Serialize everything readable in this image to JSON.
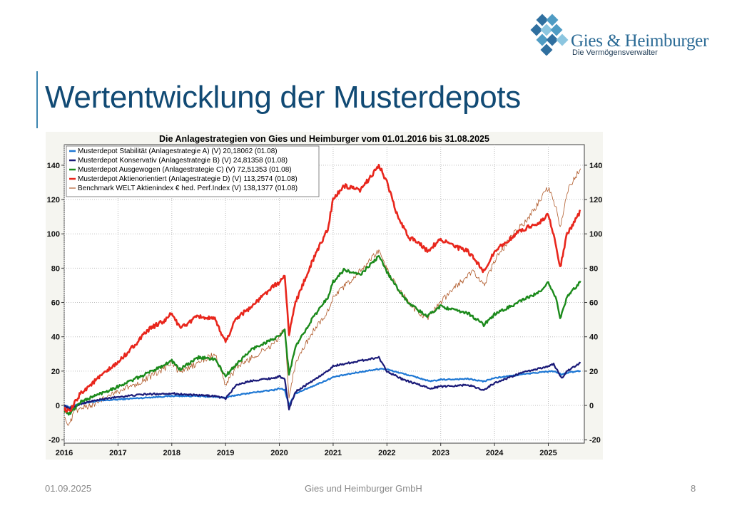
{
  "slide": {
    "title": "Wertentwicklung der Musterdepots",
    "footer_date": "01.09.2025",
    "footer_company": "Gies und Heimburger GmbH",
    "page_number": "8"
  },
  "logo": {
    "name": "Gies & Heimburger",
    "tagline": "Die Vermögensverwalter",
    "colors": [
      "#2f6f9f",
      "#4f9cc4",
      "#8cc6e0"
    ]
  },
  "chart_data": {
    "type": "line",
    "title": "Die Anlagestrategien von Gies und Heimburger vom 01.01.2016 bis 31.08.2025",
    "x_ticks": [
      "2016",
      "2017",
      "2018",
      "2019",
      "2020",
      "2021",
      "2022",
      "2023",
      "2024",
      "2025"
    ],
    "xlim": [
      2016.0,
      2025.67
    ],
    "ylim": [
      -22,
      152
    ],
    "y_ticks": [
      -20,
      0,
      20,
      40,
      60,
      80,
      100,
      120,
      140
    ],
    "grid": true,
    "legend_position": "top-left",
    "series": [
      {
        "name": "Musterdepot Stabilität (Anlagestrategie A) (V) 20,18062 (01.08)",
        "color": "#1f78d4",
        "points": [
          [
            2016.0,
            0
          ],
          [
            2016.1,
            -1
          ],
          [
            2016.3,
            1
          ],
          [
            2016.6,
            2.5
          ],
          [
            2017.0,
            3.5
          ],
          [
            2017.5,
            4.5
          ],
          [
            2018.0,
            5.5
          ],
          [
            2018.4,
            5.5
          ],
          [
            2018.8,
            5
          ],
          [
            2019.0,
            4.5
          ],
          [
            2019.2,
            6
          ],
          [
            2019.5,
            7.5
          ],
          [
            2019.9,
            9
          ],
          [
            2020.0,
            10
          ],
          [
            2020.1,
            9
          ],
          [
            2020.18,
            0
          ],
          [
            2020.3,
            7
          ],
          [
            2020.6,
            11
          ],
          [
            2020.9,
            15
          ],
          [
            2021.0,
            16.5
          ],
          [
            2021.5,
            19.5
          ],
          [
            2021.9,
            21.5
          ],
          [
            2022.0,
            21
          ],
          [
            2022.3,
            18.5
          ],
          [
            2022.6,
            16
          ],
          [
            2022.8,
            14
          ],
          [
            2023.0,
            15
          ],
          [
            2023.5,
            15.5
          ],
          [
            2023.8,
            14
          ],
          [
            2024.0,
            16
          ],
          [
            2024.5,
            18
          ],
          [
            2024.9,
            19.5
          ],
          [
            2025.1,
            20
          ],
          [
            2025.25,
            18
          ],
          [
            2025.35,
            19
          ],
          [
            2025.6,
            20.2
          ]
        ]
      },
      {
        "name": "Musterdepot Konservativ (Anlagestrategie B) (V) 24,81358 (01.08)",
        "color": "#1a1a78",
        "points": [
          [
            2016.0,
            0
          ],
          [
            2016.1,
            -2
          ],
          [
            2016.3,
            1
          ],
          [
            2016.6,
            3
          ],
          [
            2017.0,
            5
          ],
          [
            2017.5,
            6.5
          ],
          [
            2018.0,
            7
          ],
          [
            2018.4,
            6
          ],
          [
            2018.8,
            5.5
          ],
          [
            2019.0,
            4
          ],
          [
            2019.2,
            12
          ],
          [
            2019.5,
            14.5
          ],
          [
            2019.9,
            16
          ],
          [
            2020.0,
            17
          ],
          [
            2020.1,
            15
          ],
          [
            2020.18,
            -2
          ],
          [
            2020.3,
            8
          ],
          [
            2020.6,
            14
          ],
          [
            2020.9,
            20
          ],
          [
            2021.0,
            23
          ],
          [
            2021.5,
            26
          ],
          [
            2021.85,
            28
          ],
          [
            2022.0,
            20
          ],
          [
            2022.3,
            15
          ],
          [
            2022.6,
            12
          ],
          [
            2022.8,
            10
          ],
          [
            2023.0,
            11
          ],
          [
            2023.5,
            12
          ],
          [
            2023.8,
            9
          ],
          [
            2024.0,
            13
          ],
          [
            2024.5,
            19
          ],
          [
            2024.9,
            22
          ],
          [
            2025.1,
            24
          ],
          [
            2025.25,
            16
          ],
          [
            2025.35,
            20
          ],
          [
            2025.6,
            24.8
          ]
        ]
      },
      {
        "name": "Musterdepot Ausgewogen (Anlagestrategie C) (V) 72,51353 (01.08)",
        "color": "#1b8a1b",
        "points": [
          [
            2016.0,
            -3
          ],
          [
            2016.1,
            -5
          ],
          [
            2016.3,
            2
          ],
          [
            2016.6,
            6
          ],
          [
            2017.0,
            11
          ],
          [
            2017.5,
            18
          ],
          [
            2018.0,
            26
          ],
          [
            2018.15,
            21
          ],
          [
            2018.5,
            28
          ],
          [
            2018.8,
            27
          ],
          [
            2019.0,
            17
          ],
          [
            2019.2,
            24
          ],
          [
            2019.5,
            33
          ],
          [
            2019.9,
            39
          ],
          [
            2020.0,
            40
          ],
          [
            2020.1,
            44
          ],
          [
            2020.18,
            18
          ],
          [
            2020.3,
            34
          ],
          [
            2020.6,
            50
          ],
          [
            2020.9,
            63
          ],
          [
            2021.0,
            72
          ],
          [
            2021.2,
            79
          ],
          [
            2021.5,
            76
          ],
          [
            2021.85,
            87
          ],
          [
            2022.0,
            78
          ],
          [
            2022.2,
            68
          ],
          [
            2022.4,
            60
          ],
          [
            2022.6,
            55
          ],
          [
            2022.75,
            52
          ],
          [
            2023.0,
            58
          ],
          [
            2023.3,
            55
          ],
          [
            2023.5,
            54
          ],
          [
            2023.8,
            47
          ],
          [
            2024.0,
            53
          ],
          [
            2024.5,
            61
          ],
          [
            2024.9,
            67
          ],
          [
            2025.0,
            72
          ],
          [
            2025.15,
            62
          ],
          [
            2025.22,
            51
          ],
          [
            2025.35,
            63
          ],
          [
            2025.6,
            72.5
          ]
        ]
      },
      {
        "name": "Musterdepot Aktienorientiert (Anlagestrategie D) (V) 113,2574 (01.08)",
        "color": "#e8261c",
        "points": [
          [
            2016.0,
            -2
          ],
          [
            2016.1,
            -4
          ],
          [
            2016.3,
            7
          ],
          [
            2016.6,
            15
          ],
          [
            2017.0,
            25
          ],
          [
            2017.3,
            35
          ],
          [
            2017.6,
            45
          ],
          [
            2017.9,
            50
          ],
          [
            2018.0,
            54
          ],
          [
            2018.15,
            45
          ],
          [
            2018.5,
            52
          ],
          [
            2018.8,
            50
          ],
          [
            2019.0,
            37
          ],
          [
            2019.2,
            51
          ],
          [
            2019.5,
            58
          ],
          [
            2019.8,
            67
          ],
          [
            2020.0,
            72
          ],
          [
            2020.1,
            75
          ],
          [
            2020.18,
            42
          ],
          [
            2020.3,
            60
          ],
          [
            2020.6,
            83
          ],
          [
            2020.9,
            103
          ],
          [
            2021.0,
            120
          ],
          [
            2021.2,
            128
          ],
          [
            2021.5,
            125
          ],
          [
            2021.85,
            140
          ],
          [
            2022.0,
            130
          ],
          [
            2022.2,
            110
          ],
          [
            2022.4,
            98
          ],
          [
            2022.6,
            95
          ],
          [
            2022.75,
            90
          ],
          [
            2023.0,
            97
          ],
          [
            2023.3,
            92
          ],
          [
            2023.5,
            90
          ],
          [
            2023.8,
            78
          ],
          [
            2024.0,
            90
          ],
          [
            2024.5,
            102
          ],
          [
            2024.9,
            108
          ],
          [
            2025.0,
            112
          ],
          [
            2025.15,
            92
          ],
          [
            2025.22,
            80
          ],
          [
            2025.35,
            100
          ],
          [
            2025.6,
            113.3
          ]
        ]
      },
      {
        "name": "Benchmark WELT Aktienindex € hed. Perf.Index (V) 138,1377 (01.08)",
        "color": "#b05a2a",
        "points": [
          [
            2016.0,
            -5
          ],
          [
            2016.08,
            -13
          ],
          [
            2016.2,
            -3
          ],
          [
            2016.5,
            0
          ],
          [
            2016.9,
            7
          ],
          [
            2017.3,
            12
          ],
          [
            2017.8,
            20
          ],
          [
            2018.0,
            25
          ],
          [
            2018.15,
            19
          ],
          [
            2018.5,
            25
          ],
          [
            2018.8,
            30
          ],
          [
            2019.0,
            12
          ],
          [
            2019.2,
            22
          ],
          [
            2019.5,
            28
          ],
          [
            2019.9,
            36
          ],
          [
            2020.0,
            40
          ],
          [
            2020.1,
            45
          ],
          [
            2020.18,
            5
          ],
          [
            2020.3,
            25
          ],
          [
            2020.6,
            42
          ],
          [
            2020.9,
            55
          ],
          [
            2021.0,
            63
          ],
          [
            2021.4,
            75
          ],
          [
            2021.85,
            90
          ],
          [
            2022.0,
            80
          ],
          [
            2022.2,
            68
          ],
          [
            2022.45,
            58
          ],
          [
            2022.75,
            50
          ],
          [
            2023.0,
            60
          ],
          [
            2023.3,
            70
          ],
          [
            2023.6,
            78
          ],
          [
            2023.8,
            70
          ],
          [
            2024.0,
            84
          ],
          [
            2024.3,
            98
          ],
          [
            2024.6,
            108
          ],
          [
            2024.9,
            122
          ],
          [
            2025.0,
            127
          ],
          [
            2025.15,
            115
          ],
          [
            2025.22,
            103
          ],
          [
            2025.35,
            125
          ],
          [
            2025.6,
            138
          ]
        ]
      }
    ]
  }
}
